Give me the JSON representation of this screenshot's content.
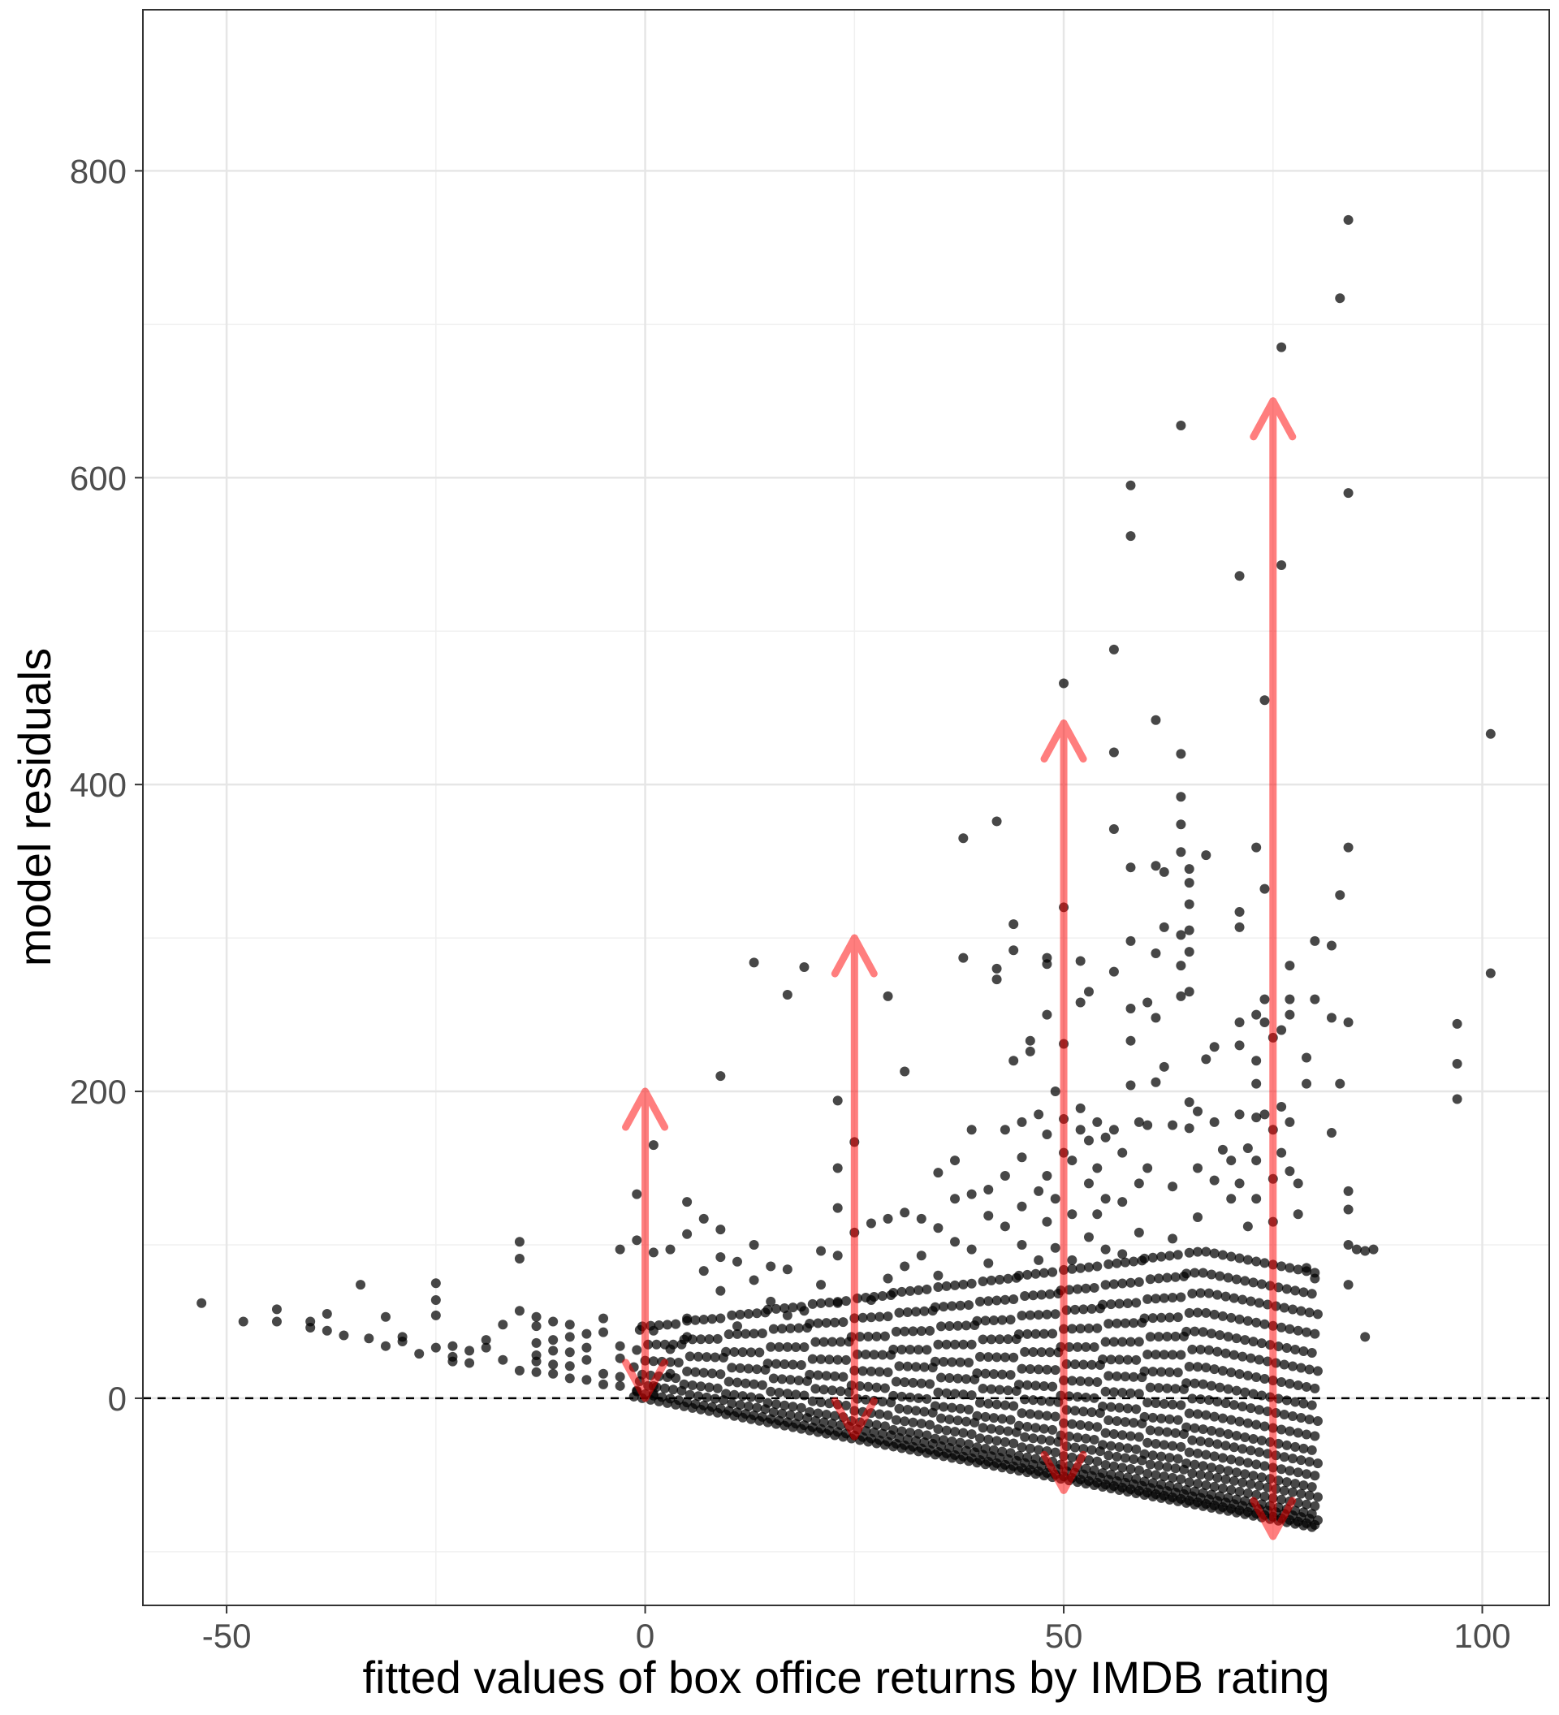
{
  "chart_data": {
    "type": "scatter",
    "title": "",
    "xlabel": "fitted values of box office returns by IMDB rating",
    "ylabel": "model residuals",
    "xlim": [
      -60,
      108
    ],
    "ylim": [
      -135,
      905
    ],
    "x_ticks": [
      {
        "value": -50,
        "label": "-50"
      },
      {
        "value": 0,
        "label": "0"
      },
      {
        "value": 50,
        "label": "50"
      },
      {
        "value": 100,
        "label": "100"
      }
    ],
    "y_ticks": [
      {
        "value": 0,
        "label": "0"
      },
      {
        "value": 200,
        "label": "200"
      },
      {
        "value": 400,
        "label": "400"
      },
      {
        "value": 600,
        "label": "600"
      },
      {
        "value": 800,
        "label": "800"
      }
    ],
    "x_minor_grid": [
      -25,
      25,
      75
    ],
    "y_minor_grid": [
      -100,
      100,
      300,
      500,
      700
    ],
    "grid": true,
    "reference_line": {
      "y": 0,
      "style": "dashed",
      "color": "#000000"
    },
    "point_color": "#000000",
    "arrow_color": "#ff0000",
    "arrows": [
      {
        "x": 0,
        "y_low": 0,
        "y_high": 200
      },
      {
        "x": 25,
        "y_low": -25,
        "y_high": 300
      },
      {
        "x": 50,
        "y_low": -60,
        "y_high": 440
      },
      {
        "x": 75,
        "y_low": -90,
        "y_high": 650
      }
    ],
    "series": [
      {
        "name": "residuals",
        "points": [
          [
            -53,
            62
          ],
          [
            -48,
            50
          ],
          [
            -44,
            58
          ],
          [
            -44,
            50
          ],
          [
            -40,
            50
          ],
          [
            -40,
            46
          ],
          [
            -38,
            55
          ],
          [
            -38,
            44
          ],
          [
            -36,
            41
          ],
          [
            -34,
            74
          ],
          [
            -33,
            39
          ],
          [
            -31,
            53
          ],
          [
            -31,
            34
          ],
          [
            -29,
            40
          ],
          [
            -29,
            37
          ],
          [
            -27,
            29
          ],
          [
            -25,
            75
          ],
          [
            -25,
            64
          ],
          [
            -25,
            54
          ],
          [
            -25,
            33
          ],
          [
            -23,
            34
          ],
          [
            -23,
            27
          ],
          [
            -23,
            24
          ],
          [
            -21,
            31
          ],
          [
            -21,
            23
          ],
          [
            -19,
            38
          ],
          [
            -19,
            33
          ],
          [
            -17,
            48
          ],
          [
            -17,
            25
          ],
          [
            -15,
            102
          ],
          [
            -15,
            91
          ],
          [
            -15,
            57
          ],
          [
            -15,
            18
          ],
          [
            -13,
            53
          ],
          [
            -13,
            47
          ],
          [
            -13,
            36
          ],
          [
            -13,
            28
          ],
          [
            -13,
            24
          ],
          [
            -13,
            17
          ],
          [
            -11,
            50
          ],
          [
            -11,
            38
          ],
          [
            -11,
            31
          ],
          [
            -11,
            22
          ],
          [
            -11,
            16
          ],
          [
            -9,
            48
          ],
          [
            -9,
            40
          ],
          [
            -9,
            30
          ],
          [
            -9,
            21
          ],
          [
            -9,
            13
          ],
          [
            -7,
            42
          ],
          [
            -7,
            33
          ],
          [
            -7,
            25
          ],
          [
            -7,
            12
          ],
          [
            -5,
            52
          ],
          [
            -5,
            43
          ],
          [
            -5,
            16
          ],
          [
            -5,
            9
          ],
          [
            -3,
            97
          ],
          [
            -3,
            34
          ],
          [
            -3,
            26
          ],
          [
            -3,
            14
          ],
          [
            -3,
            8
          ],
          [
            -1,
            133
          ],
          [
            -1,
            103
          ],
          [
            -1,
            5
          ],
          [
            1,
            165
          ],
          [
            1,
            95
          ],
          [
            1,
            44
          ],
          [
            1,
            8
          ],
          [
            1,
            3
          ],
          [
            3,
            97
          ],
          [
            3,
            32
          ],
          [
            3,
            16
          ],
          [
            5,
            128
          ],
          [
            5,
            107
          ],
          [
            5,
            52
          ],
          [
            5,
            40
          ],
          [
            7,
            117
          ],
          [
            7,
            83
          ],
          [
            9,
            210
          ],
          [
            9,
            110
          ],
          [
            9,
            92
          ],
          [
            9,
            70
          ],
          [
            11,
            89
          ],
          [
            11,
            47
          ],
          [
            13,
            284
          ],
          [
            13,
            100
          ],
          [
            13,
            77
          ],
          [
            15,
            86
          ],
          [
            15,
            63
          ],
          [
            17,
            263
          ],
          [
            17,
            84
          ],
          [
            17,
            54
          ],
          [
            19,
            281
          ],
          [
            19,
            57
          ],
          [
            21,
            96
          ],
          [
            21,
            74
          ],
          [
            23,
            194
          ],
          [
            23,
            150
          ],
          [
            23,
            124
          ],
          [
            23,
            93
          ],
          [
            23,
            62
          ],
          [
            25,
            167
          ],
          [
            25,
            108
          ],
          [
            27,
            114
          ],
          [
            27,
            64
          ],
          [
            29,
            262
          ],
          [
            29,
            117
          ],
          [
            29,
            78
          ],
          [
            31,
            213
          ],
          [
            31,
            121
          ],
          [
            31,
            86
          ],
          [
            33,
            117
          ],
          [
            33,
            93
          ],
          [
            35,
            147
          ],
          [
            35,
            111
          ],
          [
            35,
            80
          ],
          [
            37,
            155
          ],
          [
            37,
            130
          ],
          [
            37,
            102
          ],
          [
            38,
            365
          ],
          [
            38,
            287
          ],
          [
            39,
            175
          ],
          [
            39,
            133
          ],
          [
            39,
            97
          ],
          [
            41,
            136
          ],
          [
            41,
            119
          ],
          [
            41,
            88
          ],
          [
            42,
            376
          ],
          [
            42,
            280
          ],
          [
            42,
            273
          ],
          [
            43,
            175
          ],
          [
            43,
            145
          ],
          [
            43,
            112
          ],
          [
            44,
            309
          ],
          [
            44,
            292
          ],
          [
            44,
            220
          ],
          [
            45,
            180
          ],
          [
            45,
            157
          ],
          [
            45,
            125
          ],
          [
            45,
            100
          ],
          [
            46,
            233
          ],
          [
            46,
            226
          ],
          [
            47,
            185
          ],
          [
            47,
            135
          ],
          [
            47,
            90
          ],
          [
            48,
            287
          ],
          [
            48,
            283
          ],
          [
            48,
            250
          ],
          [
            48,
            172
          ],
          [
            48,
            145
          ],
          [
            48,
            115
          ],
          [
            49,
            200
          ],
          [
            49,
            130
          ],
          [
            49,
            98
          ],
          [
            50,
            466
          ],
          [
            50,
            320
          ],
          [
            50,
            231
          ],
          [
            50,
            182
          ],
          [
            50,
            160
          ],
          [
            51,
            155
          ],
          [
            51,
            120
          ],
          [
            51,
            90
          ],
          [
            52,
            285
          ],
          [
            52,
            258
          ],
          [
            52,
            189
          ],
          [
            52,
            175
          ],
          [
            53,
            265
          ],
          [
            53,
            168
          ],
          [
            53,
            140
          ],
          [
            53,
            105
          ],
          [
            54,
            180
          ],
          [
            54,
            150
          ],
          [
            54,
            120
          ],
          [
            55,
            170
          ],
          [
            55,
            130
          ],
          [
            55,
            97
          ],
          [
            56,
            488
          ],
          [
            56,
            421
          ],
          [
            56,
            371
          ],
          [
            56,
            278
          ],
          [
            56,
            175
          ],
          [
            57,
            160
          ],
          [
            57,
            128
          ],
          [
            57,
            94
          ],
          [
            58,
            595
          ],
          [
            58,
            562
          ],
          [
            58,
            346
          ],
          [
            58,
            298
          ],
          [
            58,
            254
          ],
          [
            58,
            233
          ],
          [
            58,
            204
          ],
          [
            59,
            180
          ],
          [
            59,
            140
          ],
          [
            59,
            108
          ],
          [
            60,
            258
          ],
          [
            60,
            178
          ],
          [
            60,
            150
          ],
          [
            61,
            442
          ],
          [
            61,
            347
          ],
          [
            61,
            290
          ],
          [
            61,
            248
          ],
          [
            61,
            206
          ],
          [
            62,
            343
          ],
          [
            62,
            307
          ],
          [
            62,
            216
          ],
          [
            63,
            178
          ],
          [
            63,
            138
          ],
          [
            63,
            104
          ],
          [
            64,
            634
          ],
          [
            64,
            420
          ],
          [
            64,
            392
          ],
          [
            64,
            374
          ],
          [
            64,
            356
          ],
          [
            64,
            302
          ],
          [
            64,
            282
          ],
          [
            64,
            262
          ],
          [
            65,
            345
          ],
          [
            65,
            336
          ],
          [
            65,
            322
          ],
          [
            65,
            305
          ],
          [
            65,
            291
          ],
          [
            65,
            265
          ],
          [
            65,
            193
          ],
          [
            65,
            176
          ],
          [
            66,
            187
          ],
          [
            66,
            150
          ],
          [
            66,
            118
          ],
          [
            67,
            354
          ],
          [
            67,
            221
          ],
          [
            68,
            229
          ],
          [
            68,
            180
          ],
          [
            68,
            142
          ],
          [
            69,
            162
          ],
          [
            70,
            155
          ],
          [
            70,
            130
          ],
          [
            71,
            536
          ],
          [
            71,
            317
          ],
          [
            71,
            307
          ],
          [
            71,
            245
          ],
          [
            71,
            230
          ],
          [
            71,
            185
          ],
          [
            71,
            140
          ],
          [
            72,
            163
          ],
          [
            72,
            112
          ],
          [
            73,
            359
          ],
          [
            73,
            250
          ],
          [
            73,
            220
          ],
          [
            73,
            205
          ],
          [
            73,
            183
          ],
          [
            73,
            155
          ],
          [
            73,
            130
          ],
          [
            74,
            455
          ],
          [
            74,
            332
          ],
          [
            74,
            260
          ],
          [
            74,
            245
          ],
          [
            74,
            185
          ],
          [
            75,
            235
          ],
          [
            75,
            175
          ],
          [
            75,
            143
          ],
          [
            75,
            115
          ],
          [
            76,
            685
          ],
          [
            76,
            543
          ],
          [
            76,
            240
          ],
          [
            76,
            190
          ],
          [
            76,
            160
          ],
          [
            77,
            282
          ],
          [
            77,
            260
          ],
          [
            77,
            250
          ],
          [
            77,
            180
          ],
          [
            77,
            148
          ],
          [
            78,
            140
          ],
          [
            78,
            120
          ],
          [
            79,
            222
          ],
          [
            79,
            205
          ],
          [
            79,
            85
          ],
          [
            80,
            298
          ],
          [
            80,
            260
          ],
          [
            80,
            78
          ],
          [
            82,
            295
          ],
          [
            82,
            248
          ],
          [
            82,
            173
          ],
          [
            83,
            717
          ],
          [
            83,
            328
          ],
          [
            83,
            205
          ],
          [
            84,
            768
          ],
          [
            84,
            590
          ],
          [
            84,
            359
          ],
          [
            84,
            245
          ],
          [
            84,
            135
          ],
          [
            84,
            123
          ],
          [
            84,
            100
          ],
          [
            84,
            74
          ],
          [
            85,
            97
          ],
          [
            86,
            96
          ],
          [
            86,
            40
          ],
          [
            87,
            97
          ],
          [
            97,
            244
          ],
          [
            97,
            218
          ],
          [
            97,
            195
          ],
          [
            101,
            433
          ],
          [
            101,
            277
          ]
        ]
      }
    ]
  }
}
